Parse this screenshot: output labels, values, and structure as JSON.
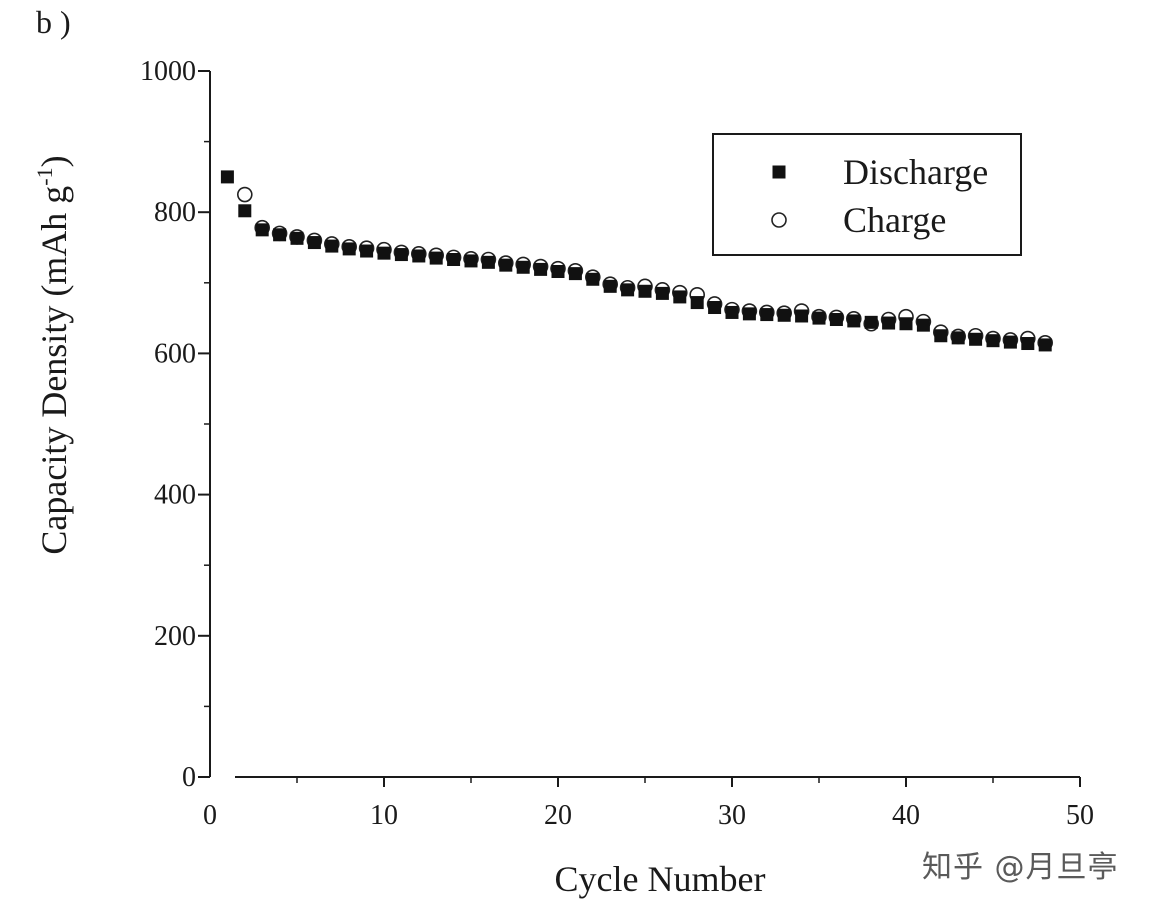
{
  "panel_label": "b )",
  "watermark": "知乎 @月旦亭",
  "chart_data": {
    "type": "scatter",
    "title": "",
    "xlabel": "Cycle Number",
    "ylabel_main": "Capacity Density (mAh g",
    "ylabel_sup": "-1",
    "ylabel_close": ")",
    "xlim": [
      0,
      50
    ],
    "ylim": [
      0,
      1000
    ],
    "x_ticks": [
      0,
      10,
      20,
      30,
      40,
      50
    ],
    "y_ticks": [
      0,
      200,
      400,
      600,
      800,
      1000
    ],
    "grid": false,
    "legend_position": "top-right",
    "series": [
      {
        "name": "Discharge",
        "marker": "filled-square",
        "color": "#111111",
        "x": [
          1,
          2,
          3,
          4,
          5,
          6,
          7,
          8,
          9,
          10,
          11,
          12,
          13,
          14,
          15,
          16,
          17,
          18,
          19,
          20,
          21,
          22,
          23,
          24,
          25,
          26,
          27,
          28,
          29,
          30,
          31,
          32,
          33,
          34,
          35,
          36,
          37,
          38,
          39,
          40,
          41,
          42,
          43,
          44,
          45,
          46,
          47,
          48
        ],
        "y": [
          850,
          802,
          775,
          768,
          763,
          757,
          752,
          748,
          745,
          742,
          740,
          738,
          735,
          733,
          731,
          729,
          725,
          722,
          719,
          716,
          713,
          705,
          695,
          690,
          688,
          685,
          680,
          672,
          665,
          658,
          656,
          655,
          654,
          653,
          650,
          648,
          646,
          644,
          643,
          642,
          640,
          625,
          622,
          620,
          618,
          616,
          614,
          612
        ]
      },
      {
        "name": "Charge",
        "marker": "open-circle",
        "color": "#111111",
        "x": [
          2,
          3,
          4,
          5,
          6,
          7,
          8,
          9,
          10,
          11,
          12,
          13,
          14,
          15,
          16,
          17,
          18,
          19,
          20,
          21,
          22,
          23,
          24,
          25,
          26,
          27,
          28,
          29,
          30,
          31,
          32,
          33,
          34,
          35,
          36,
          37,
          38,
          39,
          40,
          41,
          42,
          43,
          44,
          45,
          46,
          47,
          48
        ],
        "y": [
          825,
          778,
          770,
          765,
          760,
          755,
          751,
          749,
          747,
          743,
          741,
          739,
          736,
          734,
          733,
          728,
          726,
          723,
          720,
          717,
          708,
          698,
          693,
          695,
          690,
          686,
          683,
          670,
          662,
          660,
          658,
          657,
          660,
          652,
          651,
          649,
          642,
          648,
          652,
          645,
          630,
          624,
          625,
          621,
          619,
          621,
          615
        ]
      }
    ]
  }
}
